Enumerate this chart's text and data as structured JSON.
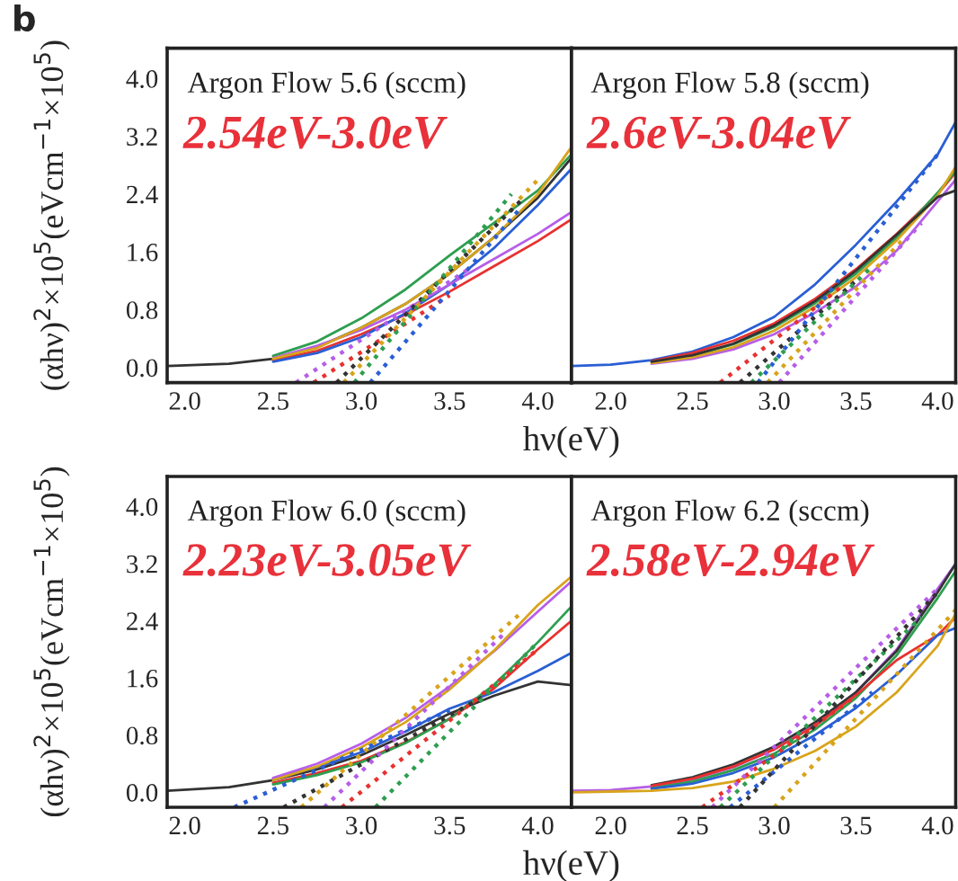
{
  "chart_data": [
    {
      "type": "line",
      "xlabel": "hν(eV)",
      "ylabel": "(αhν)$^{2}$×10$^{5}$(eVcm$^{−1}$×10$^{5}$)",
      "annotations": [
        "b",
        "Argon Flow 5.6 (sccm)",
        "2.54eV-3.0eV"
      ],
      "xlim": [
        1.9,
        4.19
      ],
      "ylim": [
        -0.21,
        4.42
      ],
      "xticks": [
        {
          "value": 2.0,
          "label": "2.0"
        },
        {
          "value": 2.5,
          "label": "2.5"
        },
        {
          "value": 3.0,
          "label": "3.0"
        },
        {
          "value": 3.5,
          "label": "3.5"
        },
        {
          "value": 4.0,
          "label": "4.0"
        }
      ],
      "yticks": [
        {
          "value": 0.0,
          "label": "0.0"
        },
        {
          "value": 0.8,
          "label": "0.8"
        },
        {
          "value": 1.6,
          "label": "1.6"
        },
        {
          "value": 2.4,
          "label": "2.4"
        },
        {
          "value": 3.2,
          "label": "3.2"
        },
        {
          "value": 4.0,
          "label": "4.0"
        }
      ],
      "grid": false,
      "legend": false,
      "series": [
        {
          "color": "#333333",
          "x": [
            1.9,
            2.25,
            2.5,
            2.75,
            3.0,
            3.25,
            3.5,
            3.75,
            4.0,
            4.19
          ],
          "values": [
            0.02,
            0.05,
            0.12,
            0.28,
            0.55,
            0.88,
            1.3,
            1.8,
            2.35,
            2.9
          ]
        },
        {
          "color": "#e8312f",
          "x": [
            2.5,
            2.75,
            3.0,
            3.25,
            3.5,
            3.75,
            4.0,
            4.19
          ],
          "values": [
            0.1,
            0.23,
            0.46,
            0.73,
            1.05,
            1.4,
            1.75,
            2.05
          ]
        },
        {
          "color": "#2a5fd4",
          "x": [
            2.5,
            2.75,
            3.0,
            3.25,
            3.5,
            3.75,
            4.0,
            4.19
          ],
          "values": [
            0.08,
            0.2,
            0.42,
            0.75,
            1.15,
            1.65,
            2.25,
            2.75
          ]
        },
        {
          "color": "#2e9e4f",
          "x": [
            2.5,
            2.75,
            3.0,
            3.25,
            3.5,
            3.75,
            4.0,
            4.19
          ],
          "values": [
            0.16,
            0.36,
            0.68,
            1.08,
            1.55,
            2.0,
            2.45,
            2.95
          ]
        },
        {
          "color": "#b65ee8",
          "x": [
            2.5,
            2.75,
            3.0,
            3.25,
            3.5,
            3.75,
            4.0,
            4.19
          ],
          "values": [
            0.13,
            0.3,
            0.52,
            0.8,
            1.15,
            1.5,
            1.85,
            2.15
          ]
        },
        {
          "color": "#d8a41c",
          "x": [
            2.5,
            2.75,
            3.0,
            3.25,
            3.5,
            3.75,
            4.0,
            4.19
          ],
          "values": [
            0.12,
            0.27,
            0.55,
            0.88,
            1.3,
            1.8,
            2.4,
            3.05
          ]
        },
        {
          "color": "#b65ee8",
          "line_style": "dotted",
          "x": [
            2.63,
            3.6
          ],
          "values": [
            -0.21,
            1.35
          ]
        },
        {
          "color": "#e8312f",
          "line_style": "dotted",
          "x": [
            2.73,
            3.5
          ],
          "values": [
            -0.21,
            1.0
          ]
        },
        {
          "color": "#333333",
          "line_style": "dotted",
          "x": [
            2.86,
            3.9
          ],
          "values": [
            -0.21,
            2.3
          ]
        },
        {
          "color": "#2e9e4f",
          "line_style": "dotted",
          "x": [
            2.96,
            3.85
          ],
          "values": [
            -0.21,
            2.4
          ]
        },
        {
          "color": "#d8a41c",
          "line_style": "dotted",
          "x": [
            2.9,
            4.0
          ],
          "values": [
            -0.21,
            2.6
          ]
        },
        {
          "color": "#2a5fd4",
          "line_style": "dotted",
          "x": [
            3.05,
            3.9
          ],
          "values": [
            -0.21,
            2.2
          ]
        }
      ]
    },
    {
      "type": "line",
      "annotations": [
        "Argon Flow 5.8 (sccm)",
        "2.6eV-3.04eV"
      ],
      "tick_labels": "x",
      "xlim": [
        1.76,
        4.11
      ],
      "ylim": [
        -0.21,
        4.42
      ],
      "xticks": [
        {
          "value": 2.0,
          "label": "2.0"
        },
        {
          "value": 2.5,
          "label": "2.5"
        },
        {
          "value": 3.0,
          "label": "3.0"
        },
        {
          "value": 3.5,
          "label": "3.5"
        },
        {
          "value": 4.0,
          "label": "4.0"
        }
      ],
      "yticks": [
        {
          "value": 0.0,
          "label": null
        },
        {
          "value": 0.8,
          "label": null
        },
        {
          "value": 1.6,
          "label": null
        },
        {
          "value": 2.4,
          "label": null
        },
        {
          "value": 3.2,
          "label": null
        },
        {
          "value": 4.0,
          "label": null
        }
      ],
      "grid": false,
      "legend": false,
      "series": [
        {
          "color": "#2a5fd4",
          "x": [
            1.76,
            2.0,
            2.25,
            2.5,
            2.75,
            3.0,
            3.25,
            3.5,
            3.75,
            4.0,
            4.11
          ],
          "values": [
            0.02,
            0.04,
            0.1,
            0.22,
            0.42,
            0.7,
            1.15,
            1.7,
            2.3,
            2.95,
            3.4
          ]
        },
        {
          "color": "#e8312f",
          "x": [
            2.25,
            2.5,
            2.75,
            3.0,
            3.25,
            3.5,
            3.75,
            4.0,
            4.11
          ],
          "values": [
            0.09,
            0.2,
            0.37,
            0.61,
            0.95,
            1.36,
            1.85,
            2.4,
            2.7
          ]
        },
        {
          "color": "#2e9e4f",
          "x": [
            2.25,
            2.5,
            2.75,
            3.0,
            3.25,
            3.5,
            3.75,
            4.0,
            4.11
          ],
          "values": [
            0.07,
            0.16,
            0.32,
            0.56,
            0.89,
            1.3,
            1.8,
            2.42,
            2.72
          ]
        },
        {
          "color": "#b65ee8",
          "x": [
            2.25,
            2.5,
            2.75,
            3.0,
            3.25,
            3.5,
            3.75,
            4.0,
            4.11
          ],
          "values": [
            0.05,
            0.12,
            0.25,
            0.46,
            0.76,
            1.12,
            1.62,
            2.3,
            2.6
          ]
        },
        {
          "color": "#d8a41c",
          "x": [
            2.25,
            2.5,
            2.75,
            3.0,
            3.25,
            3.5,
            3.75,
            4.0,
            4.11
          ],
          "values": [
            0.06,
            0.14,
            0.28,
            0.51,
            0.84,
            1.25,
            1.76,
            2.38,
            2.78
          ]
        },
        {
          "color": "#333333",
          "x": [
            2.25,
            2.5,
            2.75,
            3.0,
            3.25,
            3.5,
            3.75,
            4.0,
            4.11
          ],
          "values": [
            0.08,
            0.17,
            0.33,
            0.58,
            0.92,
            1.34,
            1.84,
            2.36,
            2.45
          ]
        },
        {
          "color": "#e8312f",
          "line_style": "dotted",
          "x": [
            2.67,
            3.4
          ],
          "values": [
            -0.21,
            1.1
          ]
        },
        {
          "color": "#333333",
          "line_style": "dotted",
          "x": [
            2.79,
            3.5
          ],
          "values": [
            -0.21,
            1.2
          ]
        },
        {
          "color": "#2e9e4f",
          "line_style": "dotted",
          "x": [
            2.86,
            3.6
          ],
          "values": [
            -0.21,
            1.4
          ]
        },
        {
          "color": "#d8a41c",
          "line_style": "dotted",
          "x": [
            2.96,
            3.8
          ],
          "values": [
            -0.21,
            1.8
          ]
        },
        {
          "color": "#b65ee8",
          "line_style": "dotted",
          "x": [
            3.03,
            3.9
          ],
          "values": [
            -0.21,
            2.0
          ]
        },
        {
          "color": "#2a5fd4",
          "line_style": "dotted",
          "x": [
            2.9,
            4.0
          ],
          "values": [
            -0.21,
            2.95
          ]
        }
      ]
    },
    {
      "type": "line",
      "xlabel": "hν(eV)",
      "ylabel": "(αhν)$^{2}$×10$^{5}$(eVcm$^{−1}$×10$^{5}$)",
      "annotations": [
        "Argon Flow 6.0 (sccm)",
        "2.23eV-3.05eV"
      ],
      "xlim": [
        1.9,
        4.19
      ],
      "ylim": [
        -0.21,
        4.42
      ],
      "xticks": [
        {
          "value": 2.0,
          "label": "2.0"
        },
        {
          "value": 2.5,
          "label": "2.5"
        },
        {
          "value": 3.0,
          "label": "3.0"
        },
        {
          "value": 3.5,
          "label": "3.5"
        },
        {
          "value": 4.0,
          "label": "4.0"
        }
      ],
      "yticks": [
        {
          "value": 0.0,
          "label": "0.0"
        },
        {
          "value": 0.8,
          "label": "0.8"
        },
        {
          "value": 1.6,
          "label": "1.6"
        },
        {
          "value": 2.4,
          "label": "2.4"
        },
        {
          "value": 3.2,
          "label": "3.2"
        },
        {
          "value": 4.0,
          "label": "4.0"
        }
      ],
      "grid": false,
      "legend": false,
      "series": [
        {
          "color": "#333333",
          "x": [
            1.9,
            2.25,
            2.5,
            2.75,
            3.0,
            3.25,
            3.5,
            3.75,
            4.0,
            4.19
          ],
          "values": [
            0.02,
            0.07,
            0.17,
            0.32,
            0.52,
            0.8,
            1.1,
            1.35,
            1.55,
            1.5
          ]
        },
        {
          "color": "#e8312f",
          "x": [
            2.5,
            2.75,
            3.0,
            3.25,
            3.5,
            3.75,
            4.0,
            4.19
          ],
          "values": [
            0.13,
            0.27,
            0.44,
            0.7,
            1.03,
            1.45,
            2.0,
            2.4
          ]
        },
        {
          "color": "#2a5fd4",
          "x": [
            2.5,
            2.75,
            3.0,
            3.25,
            3.5,
            3.75,
            4.0,
            4.19
          ],
          "values": [
            0.19,
            0.35,
            0.56,
            0.85,
            1.17,
            1.4,
            1.7,
            1.95
          ]
        },
        {
          "color": "#2e9e4f",
          "x": [
            2.5,
            2.75,
            3.0,
            3.25,
            3.5,
            3.75,
            4.0,
            4.19
          ],
          "values": [
            0.11,
            0.24,
            0.42,
            0.69,
            1.03,
            1.5,
            2.1,
            2.6
          ]
        },
        {
          "color": "#b65ee8",
          "x": [
            2.5,
            2.75,
            3.0,
            3.25,
            3.5,
            3.75,
            4.0,
            4.19
          ],
          "values": [
            0.2,
            0.4,
            0.68,
            1.04,
            1.48,
            1.97,
            2.53,
            2.95
          ]
        },
        {
          "color": "#d8a41c",
          "x": [
            2.5,
            2.75,
            3.0,
            3.25,
            3.5,
            3.75,
            4.0,
            4.19
          ],
          "values": [
            0.17,
            0.36,
            0.63,
            0.98,
            1.44,
            1.98,
            2.62,
            3.02
          ]
        },
        {
          "color": "#2a5fd4",
          "line_style": "dotted",
          "x": [
            2.28,
            3.5
          ],
          "values": [
            -0.21,
            1.15
          ]
        },
        {
          "color": "#333333",
          "line_style": "dotted",
          "x": [
            2.56,
            3.7
          ],
          "values": [
            -0.21,
            1.35
          ]
        },
        {
          "color": "#d8a41c",
          "line_style": "dotted",
          "x": [
            2.66,
            3.9
          ],
          "values": [
            -0.21,
            2.5
          ]
        },
        {
          "color": "#b65ee8",
          "line_style": "dotted",
          "x": [
            2.79,
            3.8
          ],
          "values": [
            -0.21,
            2.2
          ]
        },
        {
          "color": "#e8312f",
          "line_style": "dotted",
          "x": [
            2.89,
            4.0
          ],
          "values": [
            -0.21,
            2.0
          ]
        },
        {
          "color": "#2e9e4f",
          "line_style": "dotted",
          "x": [
            3.08,
            4.0
          ],
          "values": [
            -0.21,
            2.1
          ]
        }
      ]
    },
    {
      "type": "line",
      "annotations": [
        "Argon Flow 6.2 (sccm)",
        "2.58eV-2.94eV"
      ],
      "tick_labels": "x",
      "xlim": [
        1.76,
        4.11
      ],
      "ylim": [
        -0.21,
        4.42
      ],
      "xticks": [
        {
          "value": 2.0,
          "label": "2.0"
        },
        {
          "value": 2.5,
          "label": "2.5"
        },
        {
          "value": 3.0,
          "label": "3.0"
        },
        {
          "value": 3.5,
          "label": "3.5"
        },
        {
          "value": 4.0,
          "label": "4.0"
        }
      ],
      "yticks": [
        {
          "value": 0.0,
          "label": null
        },
        {
          "value": 0.8,
          "label": null
        },
        {
          "value": 1.6,
          "label": null
        },
        {
          "value": 2.4,
          "label": null
        },
        {
          "value": 3.2,
          "label": null
        },
        {
          "value": 4.0,
          "label": null
        }
      ],
      "grid": false,
      "legend": false,
      "series": [
        {
          "color": "#b65ee8",
          "x": [
            1.76,
            2.0,
            2.25,
            2.5,
            2.75,
            3.0,
            3.25,
            3.5,
            3.75,
            4.0,
            4.11
          ],
          "values": [
            0.02,
            0.03,
            0.08,
            0.18,
            0.35,
            0.6,
            0.95,
            1.4,
            2.0,
            2.85,
            3.2
          ]
        },
        {
          "color": "#333333",
          "x": [
            2.25,
            2.5,
            2.75,
            3.0,
            3.25,
            3.5,
            3.75,
            4.0,
            4.11
          ],
          "values": [
            0.1,
            0.21,
            0.39,
            0.64,
            0.98,
            1.4,
            1.98,
            2.8,
            3.2
          ]
        },
        {
          "color": "#2e9e4f",
          "x": [
            2.25,
            2.5,
            2.75,
            3.0,
            3.25,
            3.5,
            3.75,
            4.0,
            4.11
          ],
          "values": [
            0.06,
            0.15,
            0.31,
            0.54,
            0.88,
            1.32,
            1.92,
            2.72,
            3.1
          ]
        },
        {
          "color": "#e8312f",
          "x": [
            2.25,
            2.5,
            2.75,
            3.0,
            3.25,
            3.5,
            3.75,
            4.0,
            4.11
          ],
          "values": [
            0.09,
            0.19,
            0.36,
            0.6,
            0.93,
            1.36,
            1.85,
            2.2,
            2.45
          ]
        },
        {
          "color": "#2a5fd4",
          "x": [
            2.25,
            2.5,
            2.75,
            3.0,
            3.25,
            3.5,
            3.75,
            4.0,
            4.11
          ],
          "values": [
            0.05,
            0.12,
            0.27,
            0.49,
            0.8,
            1.18,
            1.65,
            2.2,
            2.3
          ]
        },
        {
          "color": "#d8a41c",
          "x": [
            1.76,
            2.0,
            2.25,
            2.5,
            2.75,
            3.0,
            3.25,
            3.5,
            3.75,
            4.0,
            4.11
          ],
          "values": [
            0.0,
            0.01,
            0.02,
            0.06,
            0.15,
            0.33,
            0.58,
            0.92,
            1.4,
            2.05,
            2.5
          ]
        },
        {
          "color": "#e8312f",
          "line_style": "dotted",
          "x": [
            2.56,
            3.5
          ],
          "values": [
            -0.21,
            1.35
          ]
        },
        {
          "color": "#b65ee8",
          "line_style": "dotted",
          "x": [
            2.62,
            4.0
          ],
          "values": [
            -0.21,
            2.85
          ]
        },
        {
          "color": "#2e9e4f",
          "line_style": "dotted",
          "x": [
            2.67,
            3.9
          ],
          "values": [
            -0.21,
            2.45
          ]
        },
        {
          "color": "#2a5fd4",
          "line_style": "dotted",
          "x": [
            2.73,
            3.6
          ],
          "values": [
            -0.21,
            1.4
          ]
        },
        {
          "color": "#333333",
          "line_style": "dotted",
          "x": [
            2.79,
            4.0
          ],
          "values": [
            -0.21,
            2.8
          ]
        },
        {
          "color": "#d8a41c",
          "line_style": "dotted",
          "x": [
            3.0,
            4.11
          ],
          "values": [
            -0.21,
            2.55
          ]
        }
      ]
    }
  ]
}
